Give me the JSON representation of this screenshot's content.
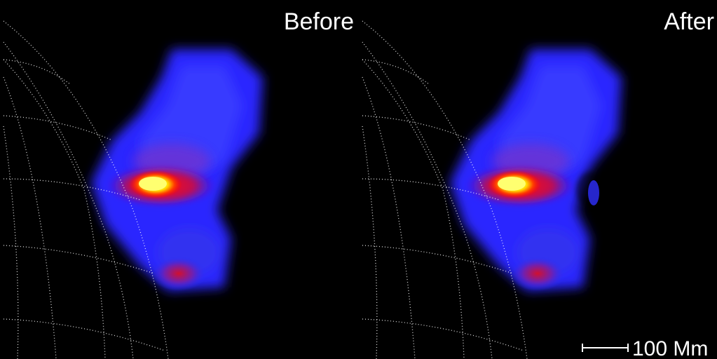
{
  "panels": [
    {
      "label": "Before"
    },
    {
      "label": "After"
    }
  ],
  "scale_bar": {
    "label": "100 Mm"
  }
}
